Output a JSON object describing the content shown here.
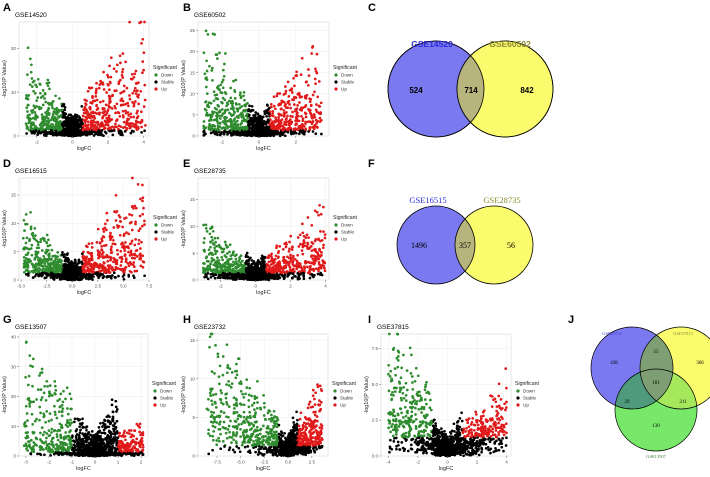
{
  "panel_labels": [
    "A",
    "B",
    "C",
    "D",
    "E",
    "F",
    "G",
    "H",
    "I",
    "J"
  ],
  "legend": {
    "title": "Significant",
    "items": [
      {
        "label": "Down",
        "color": "#2e8b2e"
      },
      {
        "label": "Stable",
        "color": "#000000"
      },
      {
        "label": "Up",
        "color": "#e01a1a"
      }
    ]
  },
  "chart_data": [
    {
      "type": "scatter",
      "panel": "A",
      "title": "GSE14520",
      "xlabel": "logFC",
      "ylabel": "-log10(P Value)",
      "xlim": [
        -3,
        4.3
      ],
      "ylim": [
        0,
        26
      ],
      "xticks": [
        "-2",
        "0",
        "2",
        "4"
      ],
      "xtick_values": [
        -2,
        0,
        2,
        4
      ],
      "yticks": [
        "0",
        "10",
        "20"
      ],
      "ytick_values": [
        0,
        10,
        20
      ],
      "thr": 0.58,
      "xmin": -2.6,
      "xmax": 4.1,
      "ymax": 25,
      "down_frac": 0.7,
      "up_frac": 1.0,
      "seed": 11
    },
    {
      "type": "scatter",
      "panel": "B",
      "title": "GSE60502",
      "xlabel": "logFC",
      "ylabel": "-log10(P Value)",
      "xlim": [
        -3.3,
        3.8
      ],
      "ylim": [
        0,
        27
      ],
      "xticks": [
        "-2",
        "0",
        "2"
      ],
      "xtick_values": [
        -2,
        0,
        2
      ],
      "yticks": [
        "0",
        "5",
        "10",
        "15",
        "20",
        "25"
      ],
      "ytick_values": [
        0,
        5,
        10,
        15,
        20,
        25
      ],
      "thr": 0.58,
      "xmin": -3.0,
      "xmax": 3.4,
      "ymax": 26,
      "down_frac": 0.9,
      "up_frac": 0.8,
      "seed": 23
    },
    {
      "type": "scatter",
      "panel": "D",
      "title": "GSE16515",
      "xlabel": "logFC",
      "ylabel": "-log10(P Value)",
      "xlim": [
        -5.2,
        7.5
      ],
      "ylim": [
        0,
        18
      ],
      "xticks": [
        "-5.0",
        "-2.5",
        "0.0",
        "2.5",
        "5.0",
        "7.5"
      ],
      "xtick_values": [
        -5,
        -2.5,
        0,
        2.5,
        5,
        7.5
      ],
      "yticks": [
        "0",
        "5",
        "10",
        "15"
      ],
      "ytick_values": [
        0,
        5,
        10,
        15
      ],
      "thr": 1,
      "xmin": -4.8,
      "xmax": 7.2,
      "ymax": 17,
      "down_frac": 0.6,
      "up_frac": 1.0,
      "seed": 37
    },
    {
      "type": "scatter",
      "panel": "E",
      "title": "GSE28735",
      "xlabel": "logFC",
      "ylabel": "-log10(P Value)",
      "xlim": [
        -3.3,
        4.2
      ],
      "ylim": [
        0,
        19
      ],
      "xticks": [
        "-2",
        "0",
        "2",
        "4"
      ],
      "xtick_values": [
        -2,
        0,
        2,
        4
      ],
      "yticks": [
        "0",
        "5",
        "10",
        "15"
      ],
      "ytick_values": [
        0,
        5,
        10,
        15
      ],
      "thr": 0.58,
      "xmin": -3.0,
      "xmax": 4.0,
      "ymax": 18,
      "down_frac": 0.5,
      "up_frac": 0.7,
      "seed": 41
    },
    {
      "type": "scatter",
      "panel": "G",
      "title": "GSE13507",
      "xlabel": "logFC",
      "ylabel": "-log10(P Value)",
      "xlim": [
        -3.3,
        2.3
      ],
      "ylim": [
        0,
        41
      ],
      "xticks": [
        "-3",
        "-2",
        "-1",
        "0",
        "1",
        "2"
      ],
      "xtick_values": [
        -3,
        -2,
        -1,
        0,
        1,
        2
      ],
      "yticks": [
        "0",
        "10",
        "20",
        "30",
        "40"
      ],
      "ytick_values": [
        0,
        10,
        20,
        30,
        40
      ],
      "thr": 1,
      "xmin": -3.1,
      "xmax": 2.1,
      "ymax": 40,
      "down_frac": 1.0,
      "up_frac": 0.3,
      "seed": 53
    },
    {
      "type": "scatter",
      "panel": "H",
      "title": "GSE23732",
      "xlabel": "logFC",
      "ylabel": "-log10(P Value)",
      "xlim": [
        -9.5,
        4.2
      ],
      "ylim": [
        0,
        15.8
      ],
      "xticks": [
        "-7.5",
        "-5.0",
        "-2.5",
        "0.0",
        "2.5"
      ],
      "xtick_values": [
        -7.5,
        -5,
        -2.5,
        0,
        2.5
      ],
      "yticks": [
        "0",
        "5",
        "10",
        "15"
      ],
      "ytick_values": [
        0,
        5,
        10,
        15
      ],
      "thr": 1,
      "xmin": -8.6,
      "xmax": 3.6,
      "ymax": 15,
      "down_frac": 1.0,
      "up_frac": 0.6,
      "seed": 61
    },
    {
      "type": "scatter",
      "panel": "I",
      "title": "GSE37815",
      "xlabel": "logFC",
      "ylabel": "-log10(P Value)",
      "xlim": [
        -4.5,
        4.3
      ],
      "ylim": [
        0,
        8.5
      ],
      "xticks": [
        "-4",
        "-2",
        "0",
        "2",
        "4"
      ],
      "xtick_values": [
        -4,
        -2,
        0,
        2,
        4
      ],
      "yticks": [
        "0.0",
        "2.5",
        "5.0",
        "7.5"
      ],
      "ytick_values": [
        0,
        2.5,
        5,
        7.5
      ],
      "thr": 1,
      "xmin": -4.0,
      "xmax": 4.0,
      "ymax": 8,
      "down_frac": 1.0,
      "up_frac": 0.5,
      "seed": 71
    }
  ],
  "venn_c": {
    "left_label": "GSE14520",
    "right_label": "GSE60502",
    "left_only": "524",
    "overlap": "714",
    "right_only": "842",
    "left_color": "#7b79ef",
    "right_color": "#fbfb6e",
    "overlap_color": "#b7b47e",
    "left_text": "#2b2bd6",
    "right_text": "#8a8a2e"
  },
  "venn_f": {
    "left_label": "GSE16515",
    "right_label": "GSE28735",
    "left_only": "1496",
    "overlap": "357",
    "right_only": "56"
  },
  "venn_j": {
    "labels": [
      "GSE23732",
      "GSE37815",
      "GSE13507"
    ],
    "a_only": "438",
    "b_only": "366",
    "c_only": "130",
    "ab": "55",
    "ac": "29",
    "bc": "211",
    "abc": "181"
  }
}
